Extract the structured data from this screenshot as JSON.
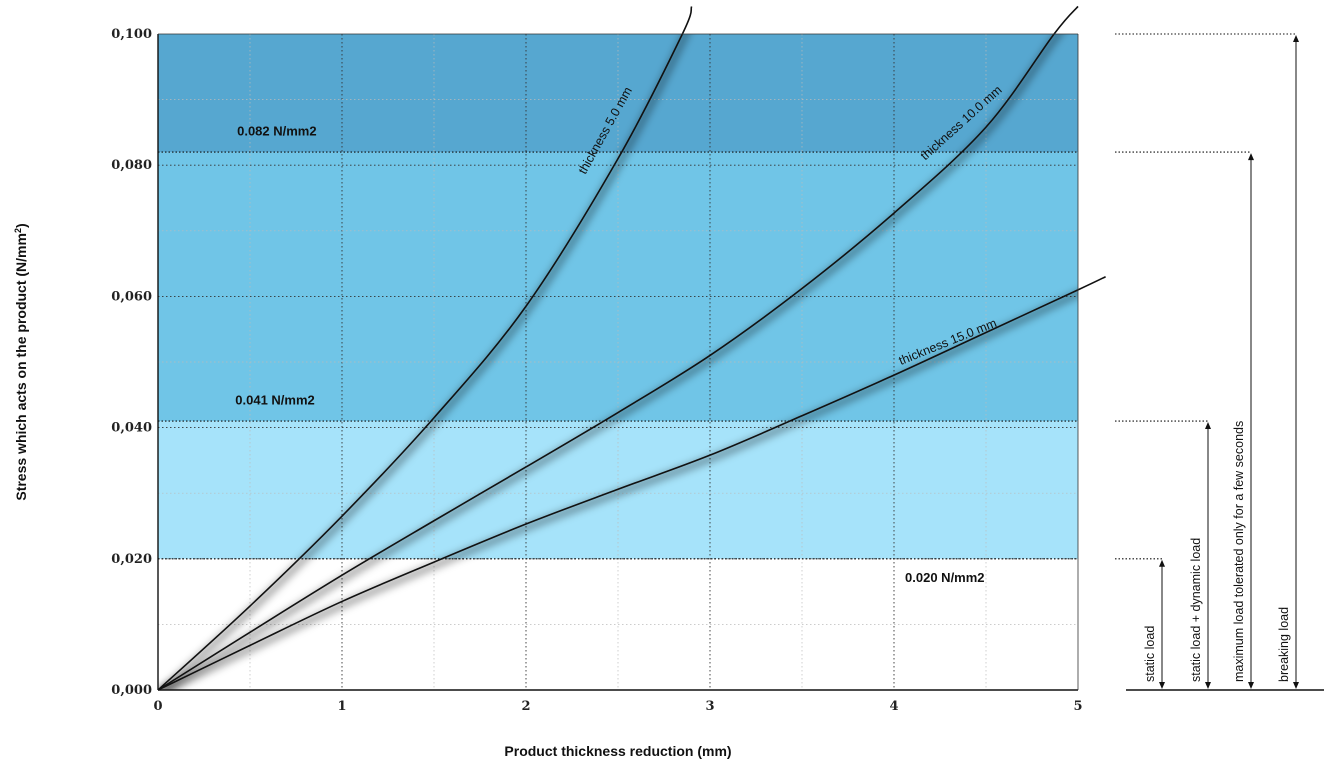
{
  "chart_data": {
    "type": "line",
    "xlabel": "Product thickness reduction (mm)",
    "ylabel": "Stress which acts on the product (N/mm",
    "ylabel_sup": "2",
    "ylabel_end": ")",
    "xlim": [
      0,
      5
    ],
    "ylim": [
      0,
      0.1
    ],
    "grid": true,
    "x_ticks": [
      {
        "value": 0,
        "label": "0"
      },
      {
        "value": 1,
        "label": "1"
      },
      {
        "value": 2,
        "label": "2"
      },
      {
        "value": 3,
        "label": "3"
      },
      {
        "value": 4,
        "label": "4"
      },
      {
        "value": 5,
        "label": "5"
      }
    ],
    "y_ticks": [
      {
        "value": 0.0,
        "label": "0,000"
      },
      {
        "value": 0.02,
        "label": "0,020"
      },
      {
        "value": 0.04,
        "label": "0,040"
      },
      {
        "value": 0.06,
        "label": "0,060"
      },
      {
        "value": 0.08,
        "label": "0,080"
      },
      {
        "value": 0.1,
        "label": "0,100"
      }
    ],
    "bands": [
      {
        "from": 0.02,
        "to": 0.041,
        "color": "#a6e3fa"
      },
      {
        "from": 0.041,
        "to": 0.082,
        "color": "#70c5e7"
      },
      {
        "from": 0.082,
        "to": 0.1,
        "color": "#56a7d0"
      }
    ],
    "band_labels": [
      {
        "text": "0.082 N/mm2",
        "x": 0.43,
        "y": 0.0845
      },
      {
        "text": "0.041 N/mm2",
        "x": 0.42,
        "y": 0.0435
      },
      {
        "text": "0.020 N/mm2",
        "x": 4.06,
        "y": 0.0165
      }
    ],
    "series": [
      {
        "name": "thickness 5.0 mm",
        "x": [
          0,
          0.5,
          1.0,
          1.5,
          2.0,
          2.5,
          2.85,
          2.9
        ],
        "y": [
          0,
          0.0128,
          0.0265,
          0.0415,
          0.0585,
          0.081,
          0.1,
          0.1042
        ]
      },
      {
        "name": "thickness 10.0 mm",
        "x": [
          0,
          0.5,
          1.0,
          1.5,
          2.0,
          2.5,
          3.0,
          3.5,
          4.0,
          4.5,
          4.87,
          5.0
        ],
        "y": [
          0,
          0.0088,
          0.0175,
          0.0258,
          0.034,
          0.0423,
          0.051,
          0.0612,
          0.0727,
          0.0858,
          0.1,
          0.1042
        ]
      },
      {
        "name": "thickness 15.0 mm",
        "x": [
          0,
          0.5,
          1.0,
          1.5,
          2.0,
          2.5,
          3.0,
          3.5,
          4.0,
          4.5,
          5.0,
          5.15
        ],
        "y": [
          0,
          0.0068,
          0.0135,
          0.0195,
          0.0253,
          0.0306,
          0.0358,
          0.0418,
          0.048,
          0.0545,
          0.061,
          0.063
        ]
      }
    ],
    "curve_labels": [
      {
        "text": "thickness 5.0 mm",
        "x": 2.45,
        "y": 0.085,
        "angle": -61
      },
      {
        "text": "thickness 10.0 mm",
        "x": 4.38,
        "y": 0.086,
        "angle": -42
      },
      {
        "text": "thickness 15.0 mm",
        "x": 4.3,
        "y": 0.0525,
        "angle": -22
      }
    ],
    "load_levels": [
      {
        "label": "static load",
        "value": 0.02
      },
      {
        "label": "static load + dynamic load",
        "value": 0.041
      },
      {
        "label": "maximum load tolerated only for a few seconds",
        "value": 0.082
      },
      {
        "label": "breaking load",
        "value": 0.1
      }
    ]
  }
}
